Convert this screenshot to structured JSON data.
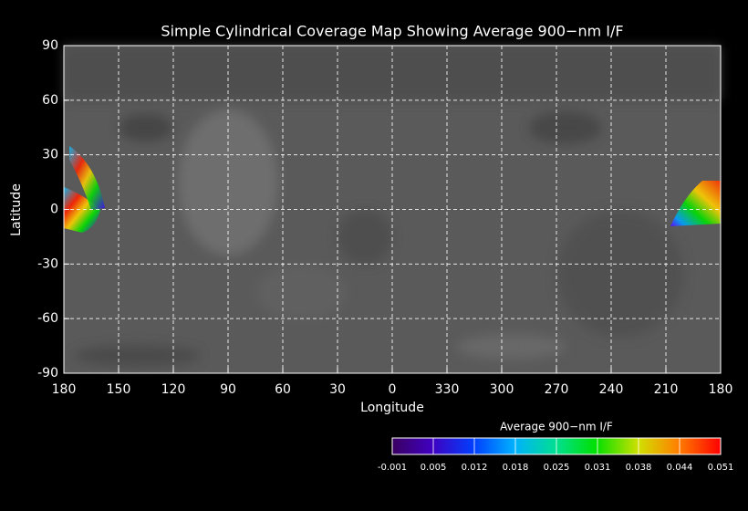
{
  "map": {
    "title": "Simple Cylindrical Coverage Map Showing Average 900−nm I/F",
    "xlabel": "Longitude",
    "ylabel": "Latitude",
    "lat_ticks": [
      90,
      60,
      30,
      0,
      -30,
      -60,
      -90
    ],
    "lon_ticks": [
      180,
      150,
      120,
      90,
      60,
      30,
      0,
      330,
      300,
      270,
      240,
      210,
      180
    ],
    "colorbar": {
      "title": "Average 900−nm I/F",
      "ticks": [
        -0.001,
        0.005,
        0.012,
        0.018,
        0.025,
        0.031,
        0.038,
        0.044,
        0.051
      ]
    }
  }
}
